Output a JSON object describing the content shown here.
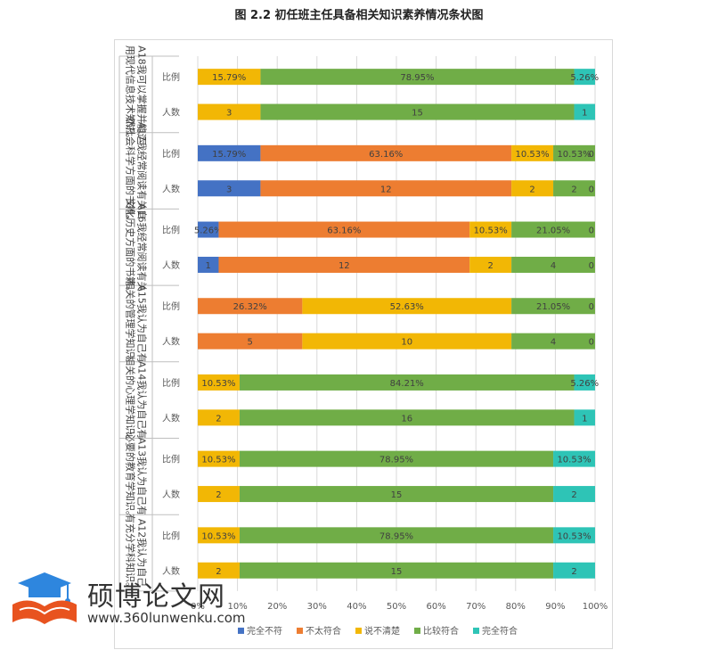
{
  "chart_data": {
    "type": "bar",
    "orientation": "horizontal",
    "stacked": "percent",
    "title": "图 2.2 初任班主任具备相关知识素养情况条状图",
    "legend": {
      "position": "bottom",
      "entries": [
        "完全不符",
        "不太符合",
        "说不清楚",
        "比较符合",
        "完全符合"
      ]
    },
    "colors": [
      "#4472C4",
      "#ED7D31",
      "#F2B705",
      "#70AD47",
      "#2EC4B6"
    ],
    "x_ticks": [
      "0%",
      "10%",
      "20%",
      "30%",
      "40%",
      "50%",
      "60%",
      "70%",
      "80%",
      "90%",
      "100%"
    ],
    "xlim": [
      0,
      100
    ],
    "grid": true,
    "groups": [
      {
        "label": "A18我可以掌握并能运用现代信息技术知识。",
        "rows": [
          {
            "type": "比例",
            "values": [
              0,
              0,
              15.79,
              78.95,
              5.26
            ],
            "labels": [
              "0",
              "",
              "15.79%",
              "78.95%",
              "5.26%"
            ]
          },
          {
            "type": "人数",
            "values": [
              0,
              0,
              3,
              15,
              1
            ],
            "labels": [
              "0",
              "",
              "3",
              "15",
              "1"
            ]
          }
        ]
      },
      {
        "label": "A17我经常阅读有关自然社会科学方面的书籍。",
        "rows": [
          {
            "type": "比例",
            "values": [
              15.79,
              63.16,
              10.53,
              10.53,
              0
            ],
            "labels": [
              "15.79%",
              "63.16%",
              "10.53%",
              "10.53%",
              "0"
            ]
          },
          {
            "type": "人数",
            "values": [
              3,
              12,
              2,
              2,
              0
            ],
            "labels": [
              "3",
              "12",
              "2",
              "2",
              "0"
            ]
          }
        ]
      },
      {
        "label": "A16我经常阅读有关文化历史方面的书籍。",
        "rows": [
          {
            "type": "比例",
            "values": [
              5.26,
              63.16,
              10.53,
              21.05,
              0
            ],
            "labels": [
              "5.26%",
              "63.16%",
              "10.53%",
              "21.05%",
              "0"
            ]
          },
          {
            "type": "人数",
            "values": [
              1,
              12,
              2,
              4,
              0
            ],
            "labels": [
              "1",
              "12",
              "2",
              "4",
              "0"
            ]
          }
        ]
      },
      {
        "label": "A15我认为自己有相关的管理学知识。",
        "rows": [
          {
            "type": "比例",
            "values": [
              0,
              26.32,
              52.63,
              21.05,
              0
            ],
            "labels": [
              "0",
              "26.32%",
              "52.63%",
              "21.05%",
              "0"
            ]
          },
          {
            "type": "人数",
            "values": [
              0,
              5,
              10,
              4,
              0
            ],
            "labels": [
              "0",
              "5",
              "10",
              "4",
              "0"
            ]
          }
        ]
      },
      {
        "label": "A14我认为自己有相关的心理学知识。",
        "rows": [
          {
            "type": "比例",
            "values": [
              0,
              0,
              10.53,
              84.21,
              5.26
            ],
            "labels": [
              "0",
              "",
              "10.53%",
              "84.21%",
              "5.26%"
            ]
          },
          {
            "type": "人数",
            "values": [
              0,
              0,
              2,
              16,
              1
            ],
            "labels": [
              "0",
              "",
              "2",
              "16",
              "1"
            ]
          }
        ]
      },
      {
        "label": "A13我认为自己有必要的教育学知识。",
        "rows": [
          {
            "type": "比例",
            "values": [
              0,
              0,
              10.53,
              78.95,
              10.53
            ],
            "labels": [
              "0",
              "",
              "10.53%",
              "78.95%",
              "10.53%"
            ]
          },
          {
            "type": "人数",
            "values": [
              0,
              0,
              2,
              15,
              2
            ],
            "labels": [
              "0",
              "",
              "2",
              "15",
              "2"
            ]
          }
        ]
      },
      {
        "label": "A12我认为自己有充分学科知识。",
        "rows": [
          {
            "type": "比例",
            "values": [
              0,
              0,
              10.53,
              78.95,
              10.53
            ],
            "labels": [
              "0",
              "",
              "10.53%",
              "78.95%",
              "10.53%"
            ]
          },
          {
            "type": "人数",
            "values": [
              0,
              0,
              2,
              15,
              2
            ],
            "labels": [
              "0",
              "",
              "2",
              "15",
              "2"
            ]
          }
        ]
      }
    ]
  },
  "watermark": {
    "title": "硕博论文网",
    "url": "www.360lunwenku.com",
    "icon": "graduation-cap-book-icon"
  }
}
